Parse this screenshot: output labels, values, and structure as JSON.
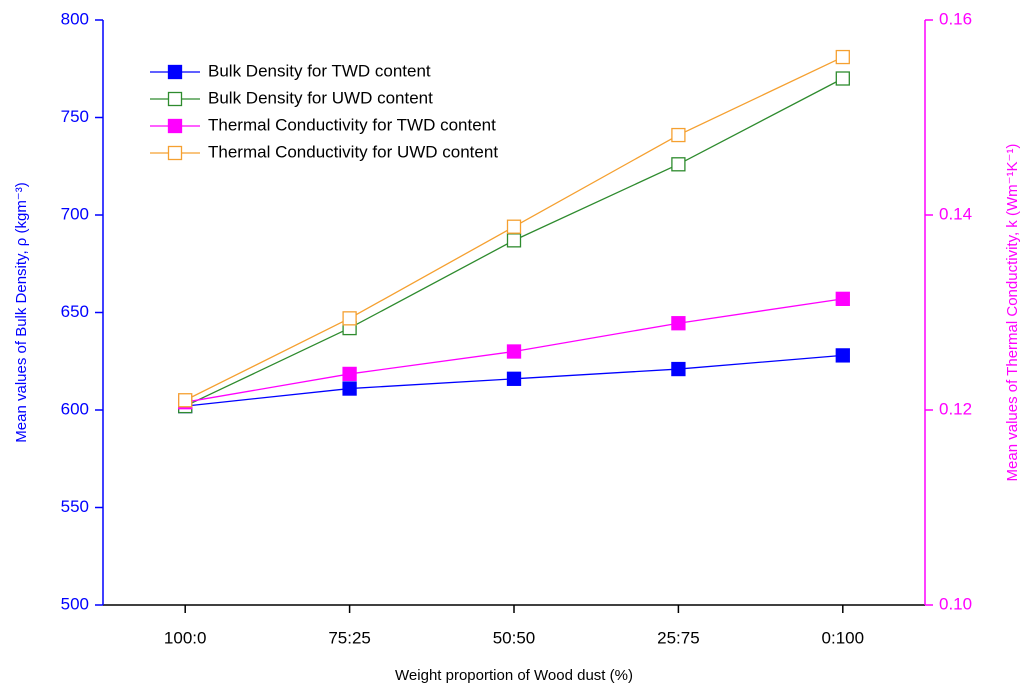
{
  "chart_data": {
    "type": "line",
    "x_label": "Weight proportion of Wood dust (%)",
    "y_label": "Mean values of Bulk Density, ρ (kgm⁻³)",
    "y2_label": "Mean values of Thermal Conductivity, k (Wm⁻¹K⁻¹)",
    "categories": [
      "100:0",
      "75:25",
      "50:50",
      "25:75",
      "0:100"
    ],
    "ylim": [
      500,
      800
    ],
    "yticks": [
      500,
      550,
      600,
      650,
      700,
      750,
      800
    ],
    "y2lim": [
      0.1,
      0.16
    ],
    "y2ticks": [
      {
        "value": 0.1,
        "label": "0.10"
      },
      0.12,
      0.14,
      0.16
    ],
    "y_color": "#0000ff",
    "y2_color": "#ff00ff",
    "legend": "upper left",
    "series": [
      {
        "name": "Bulk Density for TWD content",
        "color": "#0000ff",
        "marker": "filled-square",
        "values": [
          602,
          611,
          616,
          621,
          628
        ]
      },
      {
        "name": "Bulk Density for UWD content",
        "color": "#2e8b2e",
        "marker": "open-square",
        "values": [
          602,
          642,
          687,
          726,
          770
        ]
      },
      {
        "name": "Thermal Conductivity for TWD content",
        "color": "#ff00ff",
        "marker": "filled-square",
        "axis": "y2",
        "values": [
          0.1208,
          0.1237,
          0.126,
          0.1289,
          0.1314
        ]
      },
      {
        "name": "Thermal Conductivity for UWD content",
        "color": "#f5a030",
        "marker": "open-square",
        "axis": "y2",
        "values": [
          0.121,
          0.1294,
          0.1388,
          0.1482,
          0.1562
        ]
      }
    ]
  }
}
